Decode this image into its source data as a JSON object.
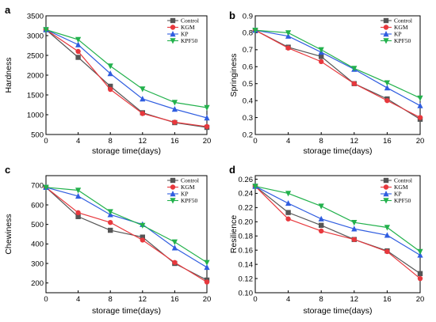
{
  "colors": {
    "Control": "#555555",
    "KGM": "#e8383d",
    "KP": "#2f5de0",
    "KPF50": "#22b14c"
  },
  "chart_data": [
    {
      "panel": "a",
      "type": "line",
      "xlabel": "storage time(days)",
      "ylabel": "Hardness",
      "xlim": [
        0,
        20
      ],
      "ylim": [
        500,
        3500
      ],
      "xticks": [
        0,
        4,
        8,
        12,
        16,
        20
      ],
      "yticks": [
        500,
        1000,
        1500,
        2000,
        2500,
        3000,
        3500
      ],
      "x": [
        0,
        4,
        8,
        12,
        16,
        20
      ],
      "legend_position": "top-right",
      "series": [
        {
          "name": "Control",
          "marker": "square",
          "values": [
            3150,
            2450,
            1720,
            1050,
            800,
            680
          ]
        },
        {
          "name": "KGM",
          "marker": "circle",
          "values": [
            3150,
            2600,
            1640,
            1030,
            810,
            700
          ]
        },
        {
          "name": "KP",
          "marker": "triangle-up",
          "values": [
            3150,
            2770,
            2040,
            1400,
            1140,
            920
          ]
        },
        {
          "name": "KPF50",
          "marker": "triangle-down",
          "values": [
            3150,
            2900,
            2230,
            1650,
            1310,
            1180
          ]
        }
      ]
    },
    {
      "panel": "b",
      "type": "line",
      "xlabel": "storage time(days)",
      "ylabel": "Springiness",
      "xlim": [
        0,
        20
      ],
      "ylim": [
        0.2,
        0.9
      ],
      "xticks": [
        0,
        4,
        8,
        12,
        16,
        20
      ],
      "yticks": [
        0.2,
        0.3,
        0.4,
        0.5,
        0.6,
        0.7,
        0.8,
        0.9
      ],
      "x": [
        0,
        4,
        8,
        12,
        16,
        20
      ],
      "legend_position": "top-right",
      "series": [
        {
          "name": "Control",
          "marker": "square",
          "values": [
            0.815,
            0.715,
            0.66,
            0.5,
            0.41,
            0.29
          ]
        },
        {
          "name": "KGM",
          "marker": "circle",
          "values": [
            0.815,
            0.71,
            0.63,
            0.5,
            0.4,
            0.3
          ]
        },
        {
          "name": "KP",
          "marker": "triangle-up",
          "values": [
            0.815,
            0.78,
            0.685,
            0.585,
            0.475,
            0.37
          ]
        },
        {
          "name": "KPF50",
          "marker": "triangle-down",
          "values": [
            0.815,
            0.8,
            0.7,
            0.59,
            0.505,
            0.415
          ]
        }
      ]
    },
    {
      "panel": "c",
      "type": "line",
      "xlabel": "storage time(days)",
      "ylabel": "Chewiness",
      "xlim": [
        0,
        20
      ],
      "ylim": [
        150,
        750
      ],
      "xticks": [
        0,
        4,
        8,
        12,
        16,
        20
      ],
      "yticks": [
        200,
        300,
        400,
        500,
        600,
        700
      ],
      "x": [
        0,
        4,
        8,
        12,
        16,
        20
      ],
      "legend_position": "top-right",
      "series": [
        {
          "name": "Control",
          "marker": "square",
          "values": [
            690,
            540,
            470,
            435,
            300,
            215
          ]
        },
        {
          "name": "KGM",
          "marker": "circle",
          "values": [
            690,
            560,
            510,
            420,
            305,
            205
          ]
        },
        {
          "name": "KP",
          "marker": "triangle-up",
          "values": [
            690,
            645,
            550,
            500,
            380,
            280
          ]
        },
        {
          "name": "KPF50",
          "marker": "triangle-down",
          "values": [
            690,
            675,
            565,
            495,
            410,
            305
          ]
        }
      ]
    },
    {
      "panel": "d",
      "type": "line",
      "xlabel": "storage time(days)",
      "ylabel": "Resilience",
      "xlim": [
        0,
        20
      ],
      "ylim": [
        0.1,
        0.265
      ],
      "xticks": [
        0,
        4,
        8,
        12,
        16,
        20
      ],
      "yticks": [
        "0.10",
        "0.12",
        "0.14",
        "0.16",
        "0.18",
        "0.20",
        "0.22",
        "0.24",
        "0.26"
      ],
      "x": [
        0,
        4,
        8,
        12,
        16,
        20
      ],
      "legend_position": "top-right",
      "series": [
        {
          "name": "Control",
          "marker": "square",
          "values": [
            0.25,
            0.213,
            0.195,
            0.175,
            0.159,
            0.127
          ]
        },
        {
          "name": "KGM",
          "marker": "circle",
          "values": [
            0.25,
            0.204,
            0.187,
            0.175,
            0.158,
            0.12
          ]
        },
        {
          "name": "KP",
          "marker": "triangle-up",
          "values": [
            0.25,
            0.226,
            0.204,
            0.19,
            0.181,
            0.153
          ]
        },
        {
          "name": "KPF50",
          "marker": "triangle-down",
          "values": [
            0.25,
            0.24,
            0.222,
            0.199,
            0.192,
            0.158
          ]
        }
      ]
    }
  ]
}
